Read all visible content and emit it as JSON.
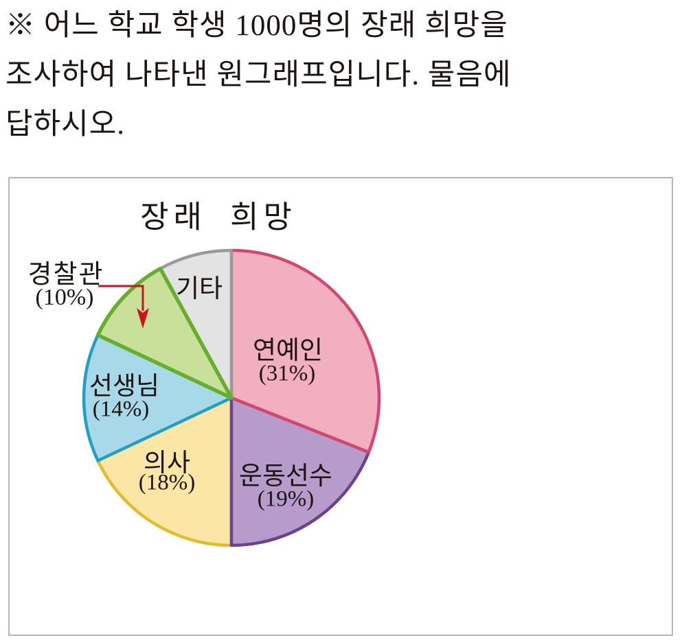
{
  "header": {
    "lines": [
      "※ 어느 학교 학생 1000명의 장래 희망을",
      "조사하여 나타낸 원그래프입니다. 물음에",
      "답하시오."
    ]
  },
  "chart_panel": {
    "border_color": "#b5b5b5",
    "background": "#ffffff"
  },
  "chart_data": {
    "type": "pie",
    "title": "장래 희망",
    "unit": "%",
    "start_position": "12-oclock",
    "direction": "clockwise",
    "legend": "none",
    "slices": [
      {
        "label": "연예인",
        "percent": 31,
        "percent_label": "(31%)",
        "fill": "#F2AFC0",
        "stroke": "#D6456E"
      },
      {
        "label": "운동선수",
        "percent": 19,
        "percent_label": "(19%)",
        "fill": "#B79CCB",
        "stroke": "#6B4191"
      },
      {
        "label": "의사",
        "percent": 18,
        "percent_label": "(18%)",
        "fill": "#FCE6A6",
        "stroke": "#E3BC2E"
      },
      {
        "label": "선생님",
        "percent": 14,
        "percent_label": "(14%)",
        "fill": "#A7D9E8",
        "stroke": "#22A0C4"
      },
      {
        "label": "경찰관",
        "percent": 10,
        "percent_label": "(10%)",
        "fill": "#C8E099",
        "stroke": "#66AE2B"
      },
      {
        "label": "기타",
        "percent": 8,
        "percent_label": "",
        "fill": "#E3E3E3",
        "stroke": "#9A9A9A"
      }
    ],
    "callout": {
      "slice": "경찰관",
      "label": "경찰관",
      "percent_label": "(10%)",
      "arrow_color": "#CC1123"
    }
  }
}
